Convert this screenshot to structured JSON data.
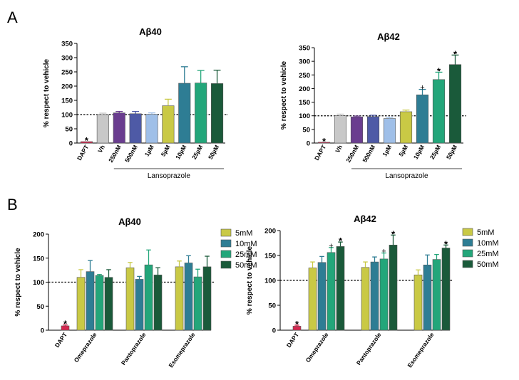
{
  "panels": {
    "a": "A",
    "b": "B"
  },
  "chart_data": [
    {
      "type": "bar",
      "title": "Aβ40",
      "ylabel": "% respect to vehicle",
      "ylim": [
        0,
        350
      ],
      "yticks": [
        0,
        50,
        100,
        150,
        200,
        250,
        300,
        350
      ],
      "reference_line": 100,
      "group_label": "Lansoprazole",
      "categories": [
        "DAPT",
        "Vh",
        "250nM",
        "500nM",
        "1µM",
        "5µM",
        "10µM",
        "25µM",
        "50µM"
      ],
      "values": [
        5,
        100,
        106,
        103,
        101,
        131,
        210,
        211,
        209
      ],
      "errors": [
        0,
        5,
        5,
        8,
        5,
        23,
        58,
        44,
        47
      ],
      "colors": [
        "#d6264f",
        "#c8c8c8",
        "#6a3d8f",
        "#4e5aa6",
        "#9fbfe8",
        "#c9c945",
        "#2e7d94",
        "#23a67a",
        "#1a5a3a"
      ],
      "marks": [
        "*",
        "",
        "",
        "",
        "",
        "",
        "",
        "",
        ""
      ]
    },
    {
      "type": "bar",
      "title": "Aβ42",
      "ylabel": "% respect to vehicle",
      "ylim": [
        0,
        350
      ],
      "yticks": [
        0,
        50,
        100,
        150,
        200,
        250,
        300,
        350
      ],
      "reference_line": 100,
      "group_label": "Lansoprazole",
      "categories": [
        "DAPT",
        "Vh",
        "250nM",
        "500nM",
        "1µM",
        "5µM",
        "10µM",
        "25µM",
        "50µM"
      ],
      "values": [
        3,
        100,
        96,
        97,
        90,
        115,
        177,
        233,
        288
      ],
      "errors": [
        0,
        6,
        3,
        5,
        4,
        6,
        20,
        27,
        35
      ],
      "colors": [
        "#d6264f",
        "#c8c8c8",
        "#6a3d8f",
        "#4e5aa6",
        "#9fbfe8",
        "#c9c945",
        "#2e7d94",
        "#23a67a",
        "#1a5a3a"
      ],
      "marks": [
        "*",
        "",
        "",
        "",
        "",
        "",
        "+",
        "*",
        "*"
      ]
    },
    {
      "type": "bar",
      "title": "Aβ40",
      "ylabel": "% respect to vehicle",
      "ylim": [
        0,
        200
      ],
      "yticks": [
        0,
        50,
        100,
        150,
        200
      ],
      "reference_line": 100,
      "control": {
        "label": "DAPT",
        "value": 9,
        "error": 2,
        "mark": "*",
        "color": "#d6264f"
      },
      "categories": [
        "Omeprazole",
        "Pantoprazole",
        "Esomeprazole"
      ],
      "series": [
        {
          "name": "5mM",
          "color": "#c9c945",
          "values": [
            110,
            130,
            132
          ],
          "errors": [
            16,
            11,
            12
          ],
          "marks": [
            "",
            "",
            ""
          ]
        },
        {
          "name": "10mM",
          "color": "#2e7d94",
          "values": [
            122,
            106,
            140
          ],
          "errors": [
            23,
            6,
            15
          ],
          "marks": [
            "",
            "",
            ""
          ]
        },
        {
          "name": "25mM",
          "color": "#23a67a",
          "values": [
            114,
            136,
            111
          ],
          "errors": [
            2,
            31,
            16
          ],
          "marks": [
            "",
            "",
            ""
          ]
        },
        {
          "name": "50mM",
          "color": "#1a5a3a",
          "values": [
            110,
            115,
            132
          ],
          "errors": [
            16,
            15,
            22
          ],
          "marks": [
            "",
            "",
            ""
          ]
        }
      ]
    },
    {
      "type": "bar",
      "title": "Aβ42",
      "ylabel": "% respect to vehicle",
      "ylim": [
        0,
        200
      ],
      "yticks": [
        0,
        50,
        100,
        150,
        200
      ],
      "reference_line": 100,
      "control": {
        "label": "DAPT",
        "value": 8,
        "error": 2,
        "mark": "*",
        "color": "#d6264f"
      },
      "categories": [
        "Omeprazole",
        "Pantoprazole",
        "Esomeprazole"
      ],
      "series": [
        {
          "name": "5mM",
          "color": "#c9c945",
          "values": [
            125,
            126,
            111
          ],
          "errors": [
            12,
            11,
            10
          ],
          "marks": [
            "",
            "",
            ""
          ]
        },
        {
          "name": "10mM",
          "color": "#2e7d94",
          "values": [
            136,
            137,
            131
          ],
          "errors": [
            12,
            10,
            20
          ],
          "marks": [
            "",
            "",
            ""
          ]
        },
        {
          "name": "25mM",
          "color": "#23a67a",
          "values": [
            156,
            143,
            142
          ],
          "errors": [
            10,
            12,
            10
          ],
          "marks": [
            "+",
            "+",
            ""
          ]
        },
        {
          "name": "50mM",
          "color": "#1a5a3a",
          "values": [
            168,
            171,
            165
          ],
          "errors": [
            9,
            20,
            6
          ],
          "marks": [
            "*",
            "*",
            "*"
          ]
        }
      ]
    }
  ]
}
